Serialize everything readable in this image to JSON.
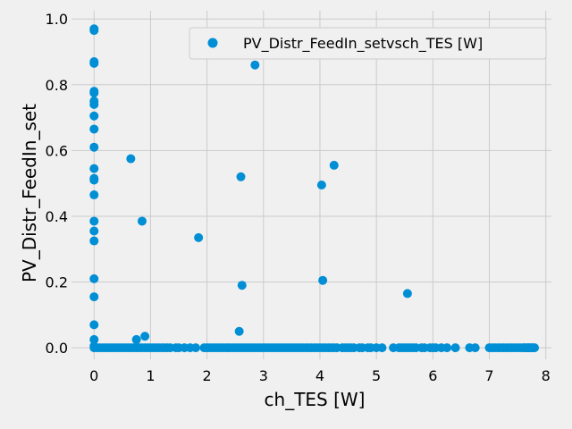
{
  "chart_data": {
    "type": "scatter",
    "title": "",
    "xlabel": "ch_TES [W]",
    "ylabel": "PV_Distr_FeedIn_set",
    "xlim": [
      -0.4,
      8.1
    ],
    "ylim": [
      -0.035,
      1.025
    ],
    "xticks": [
      0,
      1,
      2,
      3,
      4,
      5,
      6,
      7,
      8
    ],
    "yticks": [
      0.0,
      0.2,
      0.4,
      0.6,
      0.8,
      1.0
    ],
    "xtick_labels": [
      "0",
      "1",
      "2",
      "3",
      "4",
      "5",
      "6",
      "7",
      "8"
    ],
    "ytick_labels": [
      "0.0",
      "0.2",
      "0.4",
      "0.6",
      "0.8",
      "1.0"
    ],
    "grid": true,
    "legend_position": "top-right",
    "color": "#008fd5",
    "series": [
      {
        "name": "PV_Distr_FeedIn_setvsch_TES [W]",
        "points": [
          [
            0,
            0.97
          ],
          [
            0,
            0.965
          ],
          [
            0,
            0.87
          ],
          [
            0,
            0.865
          ],
          [
            0,
            0.78
          ],
          [
            0,
            0.775
          ],
          [
            0,
            0.75
          ],
          [
            0,
            0.74
          ],
          [
            0,
            0.705
          ],
          [
            0,
            0.665
          ],
          [
            0,
            0.61
          ],
          [
            0,
            0.545
          ],
          [
            0,
            0.515
          ],
          [
            0,
            0.51
          ],
          [
            0,
            0.465
          ],
          [
            0,
            0.385
          ],
          [
            0,
            0.355
          ],
          [
            0,
            0.325
          ],
          [
            0,
            0.21
          ],
          [
            0,
            0.155
          ],
          [
            0,
            0.07
          ],
          [
            0,
            0.025
          ],
          [
            0,
            0.005
          ],
          [
            0,
            0.0
          ],
          [
            0.65,
            0.575
          ],
          [
            0.85,
            0.385
          ],
          [
            0.75,
            0.025
          ],
          [
            0.9,
            0.035
          ],
          [
            1.85,
            0.335
          ],
          [
            2.6,
            0.52
          ],
          [
            2.62,
            0.19
          ],
          [
            2.57,
            0.05
          ],
          [
            2.85,
            0.86
          ],
          [
            4.03,
            0.495
          ],
          [
            4.05,
            0.205
          ],
          [
            4.25,
            0.555
          ],
          [
            5.55,
            0.165
          ],
          [
            0.05,
            0
          ],
          [
            0.1,
            0
          ],
          [
            0.15,
            0
          ],
          [
            0.2,
            0
          ],
          [
            0.25,
            0
          ],
          [
            0.3,
            0
          ],
          [
            0.35,
            0
          ],
          [
            0.4,
            0
          ],
          [
            0.45,
            0
          ],
          [
            0.5,
            0
          ],
          [
            0.55,
            0
          ],
          [
            0.6,
            0
          ],
          [
            0.65,
            0
          ],
          [
            0.7,
            0
          ],
          [
            0.75,
            0
          ],
          [
            0.8,
            0
          ],
          [
            0.85,
            0
          ],
          [
            0.9,
            0
          ],
          [
            0.95,
            0
          ],
          [
            1.0,
            0
          ],
          [
            1.05,
            0
          ],
          [
            1.1,
            0
          ],
          [
            1.15,
            0
          ],
          [
            1.2,
            0
          ],
          [
            1.25,
            0
          ],
          [
            1.3,
            0
          ],
          [
            1.35,
            0
          ],
          [
            1.45,
            0
          ],
          [
            1.5,
            0
          ],
          [
            1.6,
            0
          ],
          [
            1.7,
            0
          ],
          [
            1.8,
            0
          ],
          [
            1.95,
            0
          ],
          [
            2.0,
            0
          ],
          [
            2.05,
            0
          ],
          [
            2.1,
            0
          ],
          [
            2.15,
            0
          ],
          [
            2.2,
            0
          ],
          [
            2.25,
            0
          ],
          [
            2.3,
            0
          ],
          [
            2.35,
            0
          ],
          [
            2.4,
            0
          ],
          [
            2.45,
            0
          ],
          [
            2.5,
            0
          ],
          [
            2.55,
            0
          ],
          [
            2.6,
            0
          ],
          [
            2.65,
            0
          ],
          [
            2.7,
            0
          ],
          [
            2.75,
            0
          ],
          [
            2.8,
            0
          ],
          [
            2.85,
            0
          ],
          [
            2.9,
            0
          ],
          [
            2.95,
            0
          ],
          [
            3.0,
            0
          ],
          [
            3.05,
            0
          ],
          [
            3.1,
            0
          ],
          [
            3.15,
            0
          ],
          [
            3.2,
            0
          ],
          [
            3.25,
            0
          ],
          [
            3.3,
            0
          ],
          [
            3.35,
            0
          ],
          [
            3.4,
            0
          ],
          [
            3.45,
            0
          ],
          [
            3.5,
            0
          ],
          [
            3.55,
            0
          ],
          [
            3.6,
            0
          ],
          [
            3.65,
            0
          ],
          [
            3.7,
            0
          ],
          [
            3.75,
            0
          ],
          [
            3.8,
            0
          ],
          [
            3.85,
            0
          ],
          [
            3.9,
            0
          ],
          [
            3.95,
            0
          ],
          [
            4.0,
            0
          ],
          [
            4.05,
            0
          ],
          [
            4.1,
            0
          ],
          [
            4.15,
            0
          ],
          [
            4.2,
            0
          ],
          [
            4.25,
            0
          ],
          [
            4.3,
            0
          ],
          [
            4.4,
            0
          ],
          [
            4.45,
            0
          ],
          [
            4.5,
            0
          ],
          [
            4.55,
            0
          ],
          [
            4.6,
            0
          ],
          [
            4.7,
            0
          ],
          [
            4.75,
            0
          ],
          [
            4.85,
            0
          ],
          [
            4.9,
            0
          ],
          [
            5.0,
            0
          ],
          [
            5.1,
            0
          ],
          [
            5.3,
            0
          ],
          [
            5.4,
            0
          ],
          [
            5.45,
            0
          ],
          [
            5.5,
            0
          ],
          [
            5.55,
            0
          ],
          [
            5.6,
            0
          ],
          [
            5.65,
            0
          ],
          [
            5.7,
            0
          ],
          [
            5.8,
            0
          ],
          [
            5.85,
            0
          ],
          [
            5.95,
            0
          ],
          [
            6.0,
            0
          ],
          [
            6.05,
            0
          ],
          [
            6.15,
            0
          ],
          [
            6.25,
            0
          ],
          [
            6.4,
            0
          ],
          [
            6.65,
            0
          ],
          [
            6.75,
            0
          ],
          [
            7.0,
            0
          ],
          [
            7.05,
            0
          ],
          [
            7.1,
            0
          ],
          [
            7.15,
            0
          ],
          [
            7.2,
            0
          ],
          [
            7.25,
            0
          ],
          [
            7.3,
            0
          ],
          [
            7.35,
            0
          ],
          [
            7.4,
            0
          ],
          [
            7.45,
            0
          ],
          [
            7.5,
            0
          ],
          [
            7.55,
            0
          ],
          [
            7.6,
            0
          ],
          [
            7.62,
            0
          ],
          [
            7.65,
            0
          ],
          [
            7.68,
            0
          ],
          [
            7.7,
            0
          ],
          [
            7.72,
            0
          ],
          [
            7.75,
            0
          ],
          [
            7.78,
            0
          ],
          [
            7.8,
            0
          ]
        ]
      }
    ]
  }
}
